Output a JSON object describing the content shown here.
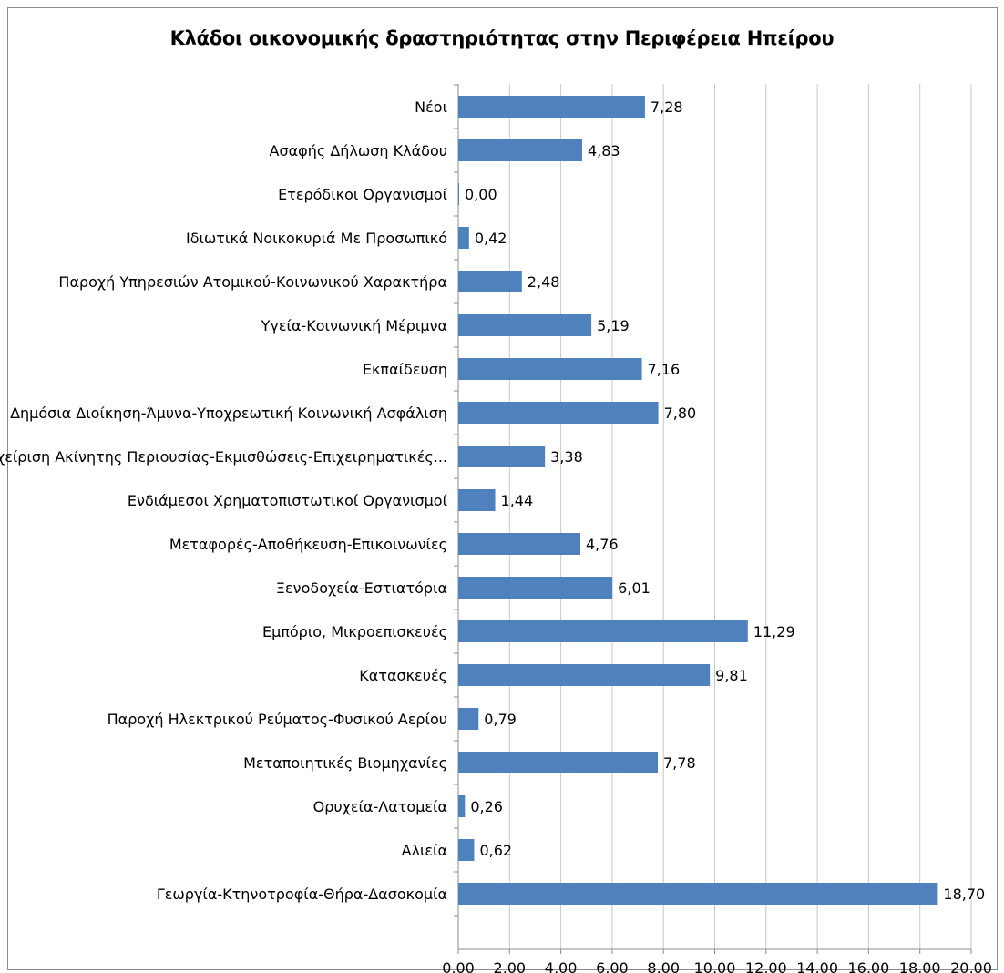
{
  "chart_data": {
    "type": "bar",
    "orientation": "horizontal",
    "title": "Κλάδοι οικονομικής δραστηριότητας στην Περιφέρεια Ηπείρου",
    "xlabel": "",
    "ylabel": "",
    "xlim": [
      0,
      20
    ],
    "x_ticks": [
      0,
      2,
      4,
      6,
      8,
      10,
      12,
      14,
      16,
      18,
      20
    ],
    "x_tick_labels": [
      "0,00",
      "2,00",
      "4,00",
      "6,00",
      "8,00",
      "10,00",
      "12,00",
      "14,00",
      "16,00",
      "18,00",
      "20,00"
    ],
    "grid": true,
    "legend": "none",
    "bar_color": "#4f81bd",
    "categories": [
      "Νέοι",
      "Ασαφής Δήλωση Κλάδου",
      "Ετερόδικοι Οργανισμοί",
      "Ιδιωτικά Νοικοκυριά Με Προσωπικό",
      "Παροχή Υπηρεσιών Ατομικού-Κοινωνικού Χαρακτήρα",
      "Υγεία-Κοινωνική Μέριμνα",
      "Εκπαίδευση",
      "Δημόσια Διοίκηση-Άμυνα-Υποχρεωτική Κοινωνική Ασφάλιση",
      "Διαχείριση Ακίνητης Περιουσίας-Εκμισθώσεις-Επιχειρηματικές...",
      "Ενδιάμεσοι Χρηματοπιστωτικοί Οργανισμοί",
      "Μεταφορές-Αποθήκευση-Επικοινωνίες",
      "Ξενοδοχεία-Εστιατόρια",
      "Εμπόριο, Μικροεπισκευές",
      "Κατασκευές",
      "Παροχή Ηλεκτρικού Ρεύματος-Φυσικού Αερίου",
      "Μεταποιητικές Βιομηχανίες",
      "Ορυχεία-Λατομεία",
      "Αλιεία",
      "Γεωργία-Κτηνοτροφία-Θήρα-Δασοκομία"
    ],
    "values": [
      7.28,
      4.83,
      0.0,
      0.42,
      2.48,
      5.19,
      7.16,
      7.8,
      3.38,
      1.44,
      4.76,
      6.01,
      11.29,
      9.81,
      0.79,
      7.78,
      0.26,
      0.62,
      18.7
    ],
    "data_labels": [
      "7,28",
      "4,83",
      "0,00",
      "0,42",
      "2,48",
      "5,19",
      "7,16",
      "7,80",
      "3,38",
      "1,44",
      "4,76",
      "6,01",
      "11,29",
      "9,81",
      "0,79",
      "7,78",
      "0,26",
      "0,62",
      "18,70"
    ]
  }
}
